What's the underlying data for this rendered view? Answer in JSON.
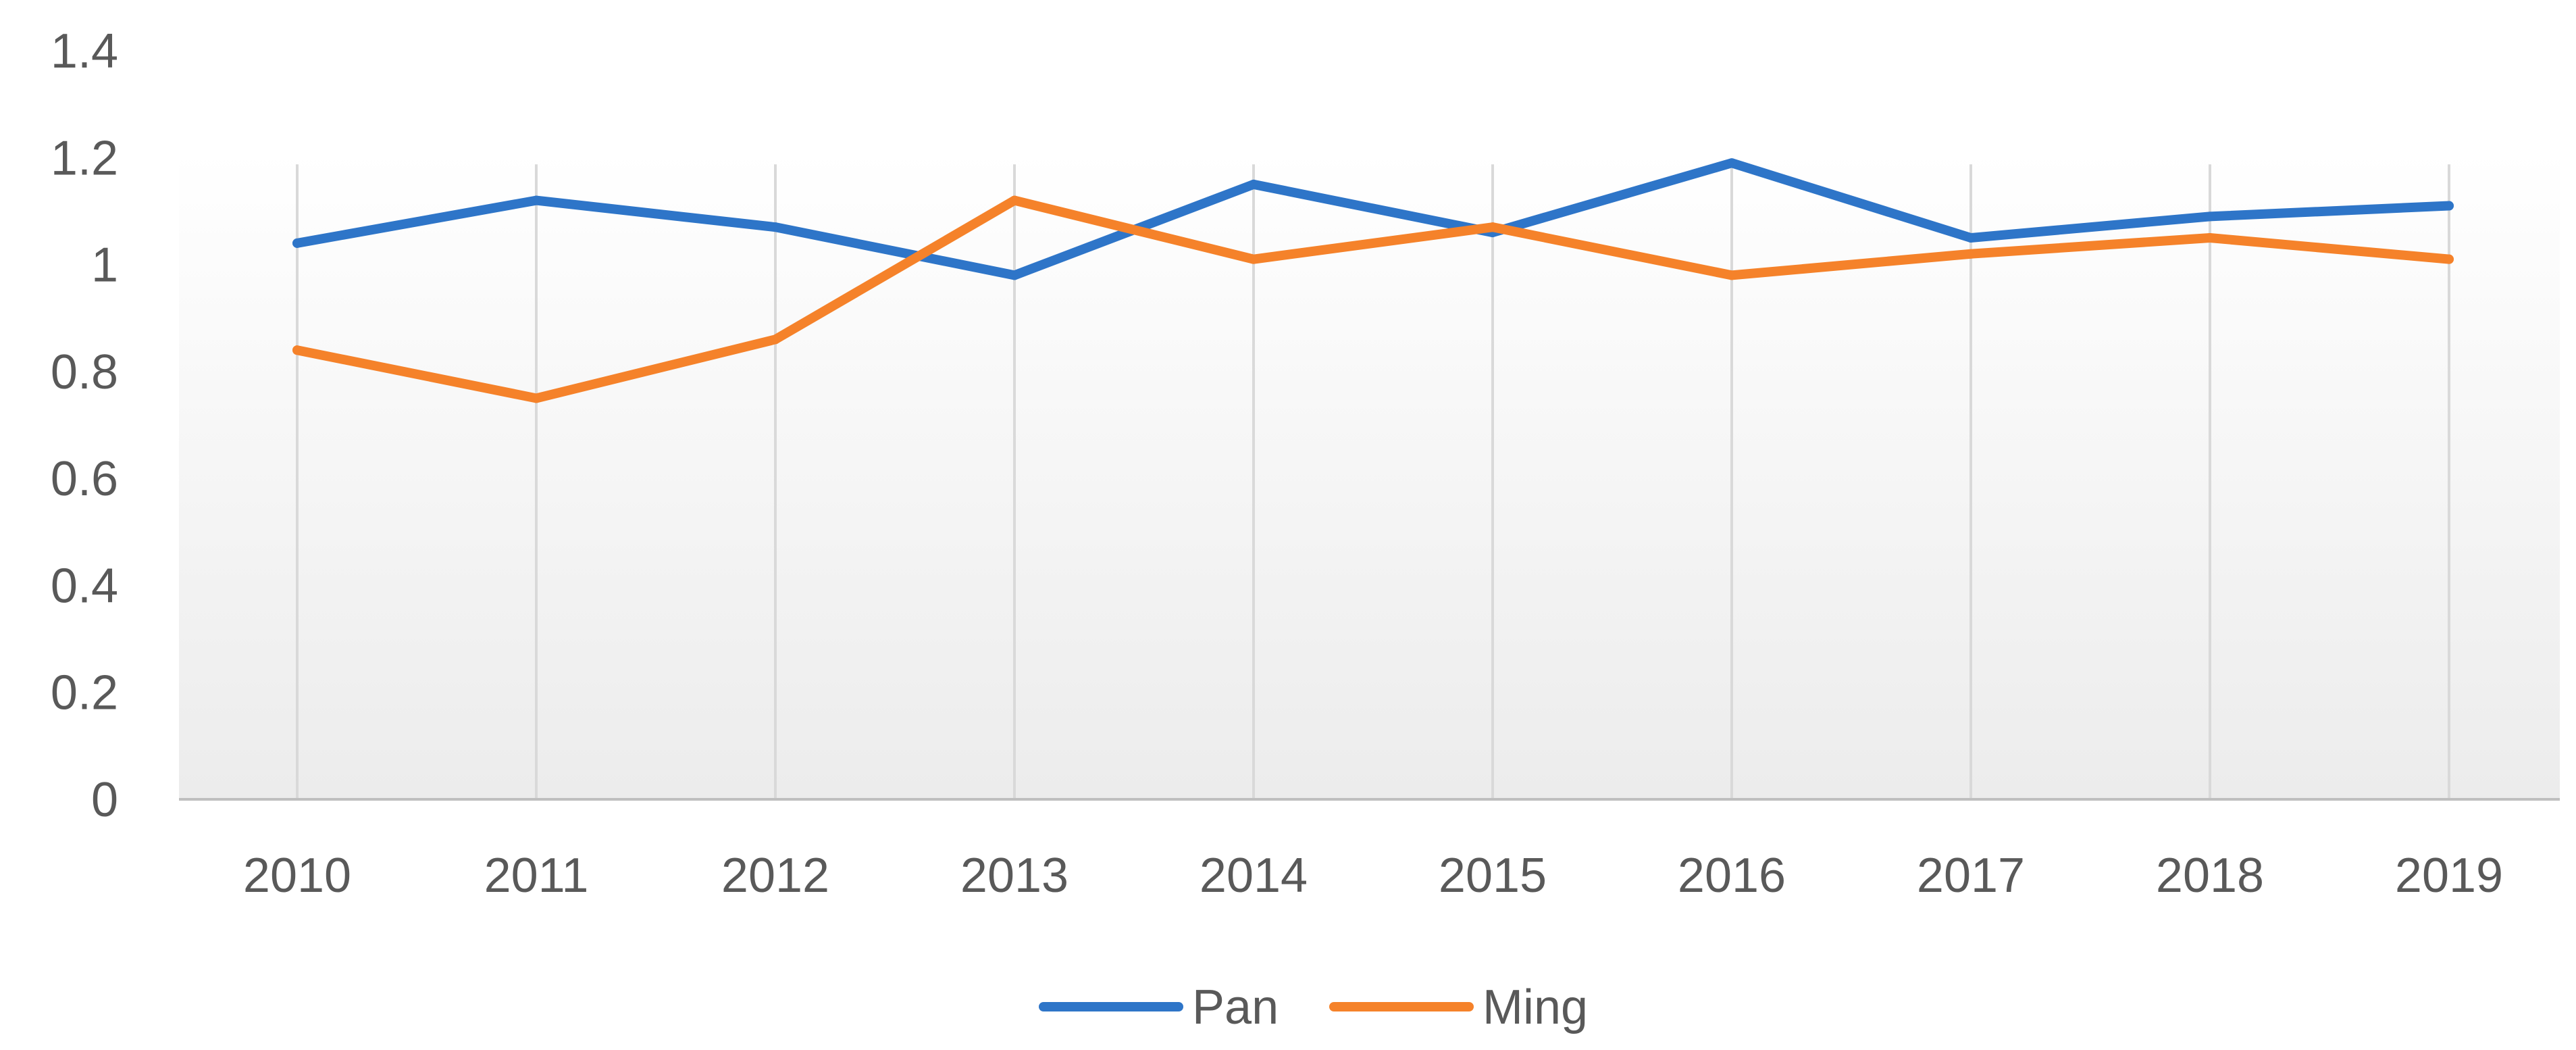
{
  "chart_data": {
    "type": "line",
    "title": "",
    "xlabel": "",
    "ylabel": "",
    "categories": [
      "2010",
      "2011",
      "2012",
      "2013",
      "2014",
      "2015",
      "2016",
      "2017",
      "2018",
      "2019"
    ],
    "ylim": [
      0,
      1.4
    ],
    "yticks": [
      "0",
      "0.2",
      "0.4",
      "0.6",
      "0.8",
      "1",
      "1.2",
      "1.4"
    ],
    "grid": "vertical",
    "legend": "bottom-center",
    "series": [
      {
        "name": "Pan",
        "color": "#2E75C8",
        "values": [
          1.04,
          1.12,
          1.07,
          0.98,
          1.15,
          1.06,
          1.19,
          1.05,
          1.09,
          1.11
        ]
      },
      {
        "name": "Ming",
        "color": "#F5822A",
        "values": [
          0.84,
          0.75,
          0.86,
          1.12,
          1.01,
          1.07,
          0.98,
          1.02,
          1.05,
          1.01
        ]
      }
    ]
  }
}
